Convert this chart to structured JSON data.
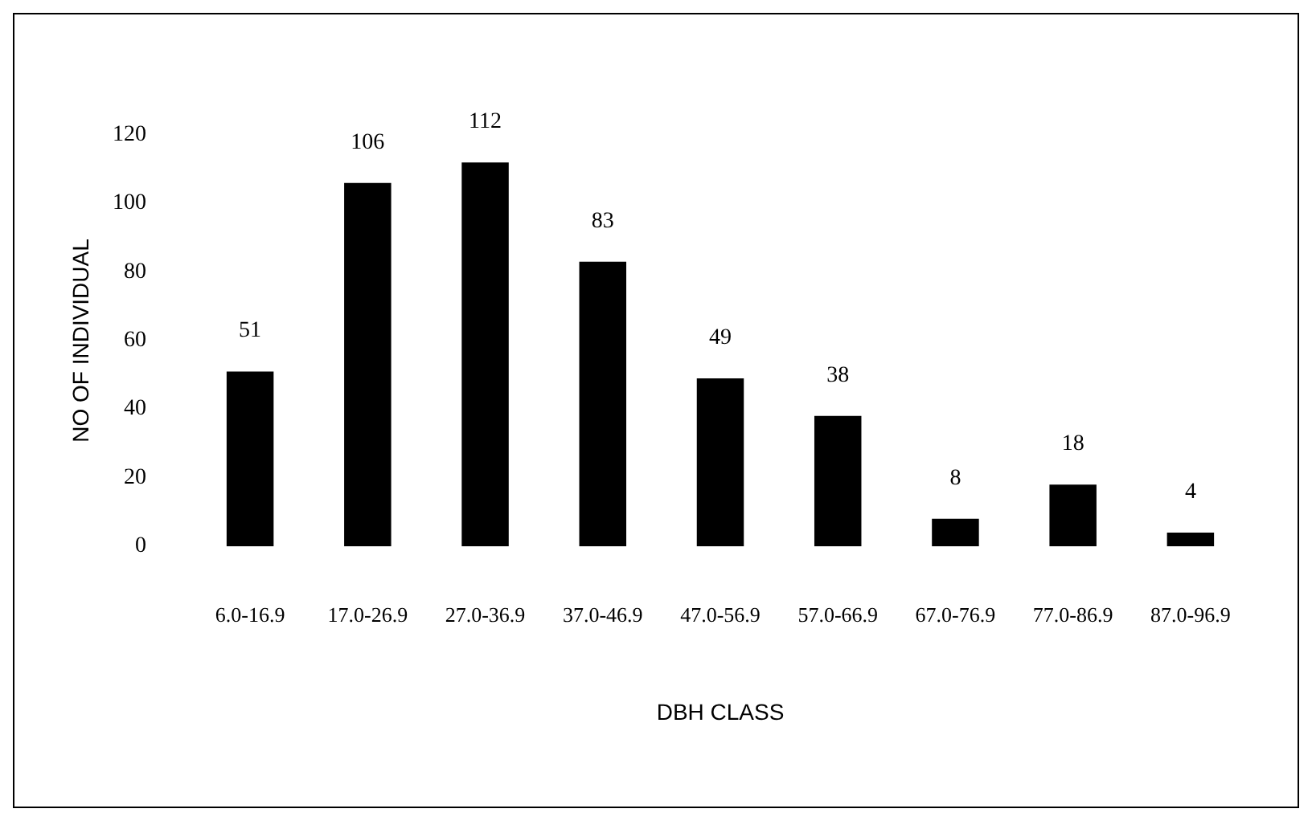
{
  "chart_data": {
    "type": "bar",
    "xlabel": "DBH CLASS",
    "ylabel": "NO OF INDIVIDUAL",
    "categories": [
      "6.0-16.9",
      "17.0-26.9",
      "27.0-36.9",
      "37.0-46.9",
      "47.0-56.9",
      "57.0-66.9",
      "67.0-76.9",
      "77.0-86.9",
      "87.0-96.9"
    ],
    "values": [
      51,
      106,
      112,
      83,
      49,
      38,
      8,
      18,
      4
    ],
    "color": "#000000",
    "ylim": [
      0,
      120
    ],
    "yticks": [
      0,
      20,
      40,
      60,
      80,
      100,
      120
    ],
    "data_labels": true
  }
}
